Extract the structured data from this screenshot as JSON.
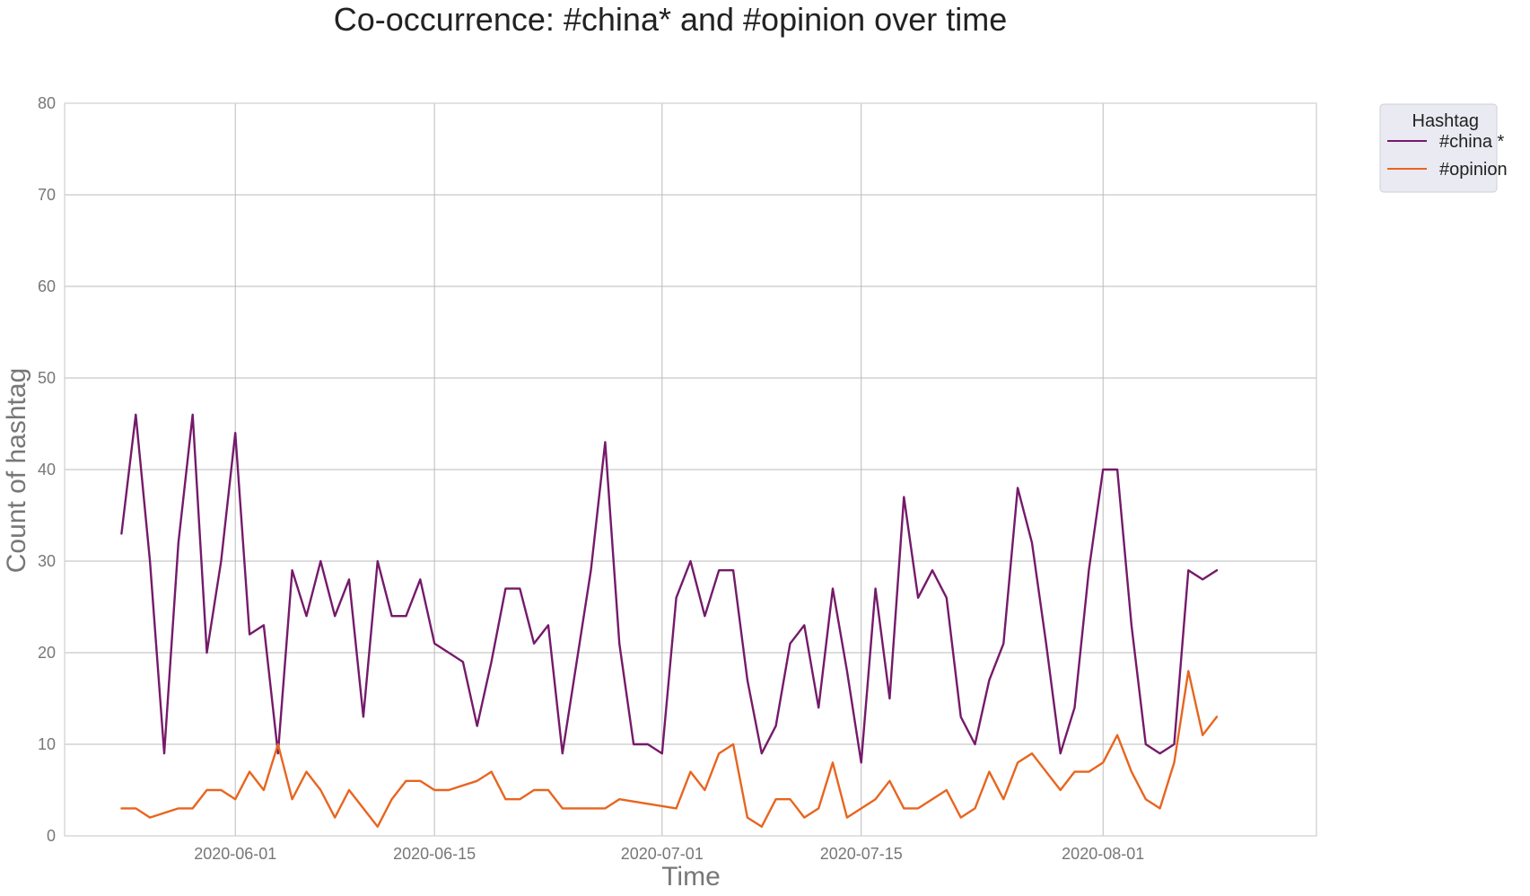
{
  "chart_data": {
    "type": "line",
    "title": "Co-occurrence: #china* and #opinion over time",
    "xlabel": "Time",
    "ylabel": "Count of hashtag",
    "ylim": [
      0,
      80
    ],
    "yticks": [
      0,
      10,
      20,
      30,
      40,
      50,
      60,
      70,
      80
    ],
    "xlim": [
      "2020-05-20",
      "2020-08-16"
    ],
    "xticks": [
      "2020-06-01",
      "2020-06-15",
      "2020-07-01",
      "2020-07-15",
      "2020-08-01"
    ],
    "grid": true,
    "legend": {
      "title": "Hashtag",
      "placement": "outside-top-right"
    },
    "series": [
      {
        "name": "#china *",
        "color": "#751a6a",
        "points": [
          [
            "2020-05-24",
            33
          ],
          [
            "2020-05-25",
            46
          ],
          [
            "2020-05-26",
            30
          ],
          [
            "2020-05-27",
            9
          ],
          [
            "2020-05-28",
            32
          ],
          [
            "2020-05-29",
            46
          ],
          [
            "2020-05-30",
            20
          ],
          [
            "2020-05-31",
            30
          ],
          [
            "2020-06-01",
            44
          ],
          [
            "2020-06-02",
            22
          ],
          [
            "2020-06-03",
            23
          ],
          [
            "2020-06-04",
            9
          ],
          [
            "2020-06-05",
            29
          ],
          [
            "2020-06-06",
            24
          ],
          [
            "2020-06-07",
            30
          ],
          [
            "2020-06-08",
            24
          ],
          [
            "2020-06-09",
            28
          ],
          [
            "2020-06-10",
            13
          ],
          [
            "2020-06-11",
            30
          ],
          [
            "2020-06-12",
            24
          ],
          [
            "2020-06-13",
            24
          ],
          [
            "2020-06-14",
            28
          ],
          [
            "2020-06-15",
            21
          ],
          [
            "2020-06-17",
            19
          ],
          [
            "2020-06-18",
            12
          ],
          [
            "2020-06-19",
            19
          ],
          [
            "2020-06-20",
            27
          ],
          [
            "2020-06-21",
            27
          ],
          [
            "2020-06-22",
            21
          ],
          [
            "2020-06-23",
            23
          ],
          [
            "2020-06-24",
            9
          ],
          [
            "2020-06-26",
            29
          ],
          [
            "2020-06-27",
            43
          ],
          [
            "2020-06-28",
            21
          ],
          [
            "2020-06-29",
            10
          ],
          [
            "2020-06-30",
            10
          ],
          [
            "2020-07-01",
            9
          ],
          [
            "2020-07-02",
            26
          ],
          [
            "2020-07-03",
            30
          ],
          [
            "2020-07-04",
            24
          ],
          [
            "2020-07-05",
            29
          ],
          [
            "2020-07-06",
            29
          ],
          [
            "2020-07-07",
            17
          ],
          [
            "2020-07-08",
            9
          ],
          [
            "2020-07-09",
            12
          ],
          [
            "2020-07-10",
            21
          ],
          [
            "2020-07-11",
            23
          ],
          [
            "2020-07-12",
            14
          ],
          [
            "2020-07-13",
            27
          ],
          [
            "2020-07-14",
            18
          ],
          [
            "2020-07-15",
            8
          ],
          [
            "2020-07-16",
            27
          ],
          [
            "2020-07-17",
            15
          ],
          [
            "2020-07-18",
            37
          ],
          [
            "2020-07-19",
            26
          ],
          [
            "2020-07-20",
            29
          ],
          [
            "2020-07-21",
            26
          ],
          [
            "2020-07-22",
            13
          ],
          [
            "2020-07-23",
            10
          ],
          [
            "2020-07-24",
            17
          ],
          [
            "2020-07-25",
            21
          ],
          [
            "2020-07-26",
            38
          ],
          [
            "2020-07-27",
            32
          ],
          [
            "2020-07-28",
            21
          ],
          [
            "2020-07-29",
            9
          ],
          [
            "2020-07-30",
            14
          ],
          [
            "2020-07-31",
            29
          ],
          [
            "2020-08-01",
            40
          ],
          [
            "2020-08-02",
            40
          ],
          [
            "2020-08-03",
            23
          ],
          [
            "2020-08-04",
            10
          ],
          [
            "2020-08-05",
            9
          ],
          [
            "2020-08-06",
            10
          ],
          [
            "2020-08-07",
            29
          ],
          [
            "2020-08-08",
            28
          ],
          [
            "2020-08-09",
            29
          ]
        ]
      },
      {
        "name": "#opinion",
        "color": "#e8651f",
        "points": [
          [
            "2020-05-24",
            3
          ],
          [
            "2020-05-25",
            3
          ],
          [
            "2020-05-26",
            2
          ],
          [
            "2020-05-28",
            3
          ],
          [
            "2020-05-29",
            3
          ],
          [
            "2020-05-30",
            5
          ],
          [
            "2020-05-31",
            5
          ],
          [
            "2020-06-01",
            4
          ],
          [
            "2020-06-02",
            7
          ],
          [
            "2020-06-03",
            5
          ],
          [
            "2020-06-04",
            10
          ],
          [
            "2020-06-05",
            4
          ],
          [
            "2020-06-06",
            7
          ],
          [
            "2020-06-07",
            5
          ],
          [
            "2020-06-08",
            2
          ],
          [
            "2020-06-09",
            5
          ],
          [
            "2020-06-11",
            1
          ],
          [
            "2020-06-12",
            4
          ],
          [
            "2020-06-13",
            6
          ],
          [
            "2020-06-14",
            6
          ],
          [
            "2020-06-15",
            5
          ],
          [
            "2020-06-16",
            5
          ],
          [
            "2020-06-18",
            6
          ],
          [
            "2020-06-19",
            7
          ],
          [
            "2020-06-20",
            4
          ],
          [
            "2020-06-21",
            4
          ],
          [
            "2020-06-22",
            5
          ],
          [
            "2020-06-23",
            5
          ],
          [
            "2020-06-24",
            3
          ],
          [
            "2020-06-26",
            3
          ],
          [
            "2020-06-27",
            3
          ],
          [
            "2020-06-28",
            4
          ],
          [
            "2020-07-02",
            3
          ],
          [
            "2020-07-03",
            7
          ],
          [
            "2020-07-04",
            5
          ],
          [
            "2020-07-05",
            9
          ],
          [
            "2020-07-06",
            10
          ],
          [
            "2020-07-07",
            2
          ],
          [
            "2020-07-08",
            1
          ],
          [
            "2020-07-09",
            4
          ],
          [
            "2020-07-10",
            4
          ],
          [
            "2020-07-11",
            2
          ],
          [
            "2020-07-12",
            3
          ],
          [
            "2020-07-13",
            8
          ],
          [
            "2020-07-14",
            2
          ],
          [
            "2020-07-16",
            4
          ],
          [
            "2020-07-17",
            6
          ],
          [
            "2020-07-18",
            3
          ],
          [
            "2020-07-19",
            3
          ],
          [
            "2020-07-21",
            5
          ],
          [
            "2020-07-22",
            2
          ],
          [
            "2020-07-23",
            3
          ],
          [
            "2020-07-24",
            7
          ],
          [
            "2020-07-25",
            4
          ],
          [
            "2020-07-26",
            8
          ],
          [
            "2020-07-27",
            9
          ],
          [
            "2020-07-29",
            5
          ],
          [
            "2020-07-30",
            7
          ],
          [
            "2020-07-31",
            7
          ],
          [
            "2020-08-01",
            8
          ],
          [
            "2020-08-02",
            11
          ],
          [
            "2020-08-03",
            7
          ],
          [
            "2020-08-04",
            4
          ],
          [
            "2020-08-05",
            3
          ],
          [
            "2020-08-06",
            8
          ],
          [
            "2020-08-07",
            18
          ],
          [
            "2020-08-08",
            11
          ],
          [
            "2020-08-09",
            13
          ]
        ]
      }
    ]
  }
}
